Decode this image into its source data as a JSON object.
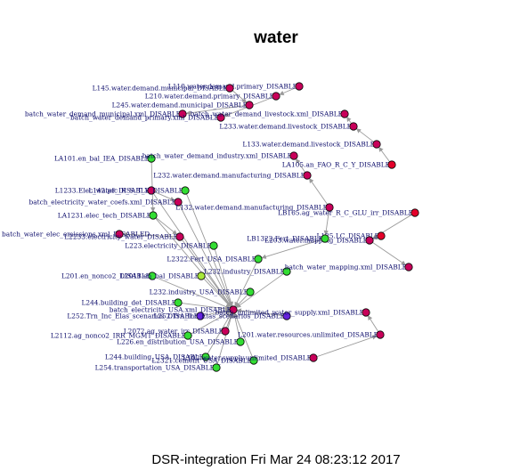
{
  "title": "water",
  "footer": "DSR-integration Fri Mar 24 08:23:12 2017",
  "colors": {
    "magenta": "#c8005a",
    "green": "#33dd33",
    "purple": "#6622dd",
    "red": "#e4002a",
    "yellow_green": "#a8e83a",
    "edge": "#9a9a9a",
    "label": "#0d0d6b"
  },
  "nodes": [
    {
      "id": "L110",
      "label": "L110.water.demand.primary_DISABLED",
      "color": "magenta"
    },
    {
      "id": "L145",
      "label": "L145.water.demand.municipal_DISABLED",
      "color": "magenta"
    },
    {
      "id": "L210",
      "label": "L210.water.demand.primary_DISABLED",
      "color": "magenta"
    },
    {
      "id": "L245",
      "label": "L245.water.demand.municipal_DISABLED",
      "color": "magenta"
    },
    {
      "id": "bwdm",
      "label": "batch_water_demand_municipal.xml_DISABLED",
      "color": "magenta"
    },
    {
      "id": "bwdp",
      "label": "batch_water_demand_primary.xml_DISABLED",
      "color": "magenta"
    },
    {
      "id": "bwdl",
      "label": "batch_water_demand_livestock.xml_DISABLED",
      "color": "magenta"
    },
    {
      "id": "L233",
      "label": "L233.water.demand.livestock_DISABLED",
      "color": "magenta"
    },
    {
      "id": "L133",
      "label": "L133.water.demand.livestock_DISABLED",
      "color": "magenta"
    },
    {
      "id": "LA105",
      "label": "LA105.an_FAO_R_C_Y_DISABLED",
      "color": "red"
    },
    {
      "id": "LA101",
      "label": "LA101.en_bal_IEA_DISABLED",
      "color": "green"
    },
    {
      "id": "bwdi",
      "label": "batch_water_demand_industry.xml_DISABLED",
      "color": "magenta"
    },
    {
      "id": "L232m",
      "label": "L232.water.demand.manufacturing_DISABLED",
      "color": "magenta"
    },
    {
      "id": "L1233",
      "label": "L1233.Elec_water_DISABLED",
      "color": "magenta"
    },
    {
      "id": "L142",
      "label": "L142.pfc_R_S_T_Y_DISABLED",
      "color": "green"
    },
    {
      "id": "L1322",
      "label": "L1322.Fert_DISABLED",
      "color": "green"
    },
    {
      "id": "bewc",
      "label": "batch_electricity_water_coefs.xml_DISABLED",
      "color": "magenta"
    },
    {
      "id": "L132",
      "label": "L132.water.demand.manufacturing_DISABLED",
      "color": "magenta"
    },
    {
      "id": "LB165",
      "label": "LB165.ag_water_R_C_GLU_irr_DISABLED",
      "color": "red"
    },
    {
      "id": "LA1231",
      "label": "LA1231.elec_tech_DISABLED",
      "color": "green"
    },
    {
      "id": "bwee",
      "label": "batch_water_elec_emissions.xml_DISABLED",
      "color": "magenta"
    },
    {
      "id": "L2233",
      "label": "L2233.electricity_water_DISABLED",
      "color": "magenta"
    },
    {
      "id": "L125",
      "label": "L125.LC_DISABLED",
      "color": "red"
    },
    {
      "id": "L203",
      "label": "L203.water.mapping_DISABLED",
      "color": "magenta"
    },
    {
      "id": "L223",
      "label": "L223.electricity_DISABLED",
      "color": "green"
    },
    {
      "id": "LB1322",
      "label": "LB1322.Fert_DISABLED",
      "color": "green"
    },
    {
      "id": "L2322",
      "label": "L2322.Fert_USA_DISABLED",
      "color": "green"
    },
    {
      "id": "L232i",
      "label": "L232.industry_DISABLED",
      "color": "green"
    },
    {
      "id": "bwm",
      "label": "batch_water_mapping.xml_DISABLED",
      "color": "magenta"
    },
    {
      "id": "L201",
      "label": "L201.en_nonco2_DISABLED",
      "color": "green"
    },
    {
      "id": "L2011",
      "label": "L2011.en_bal_DISABLED",
      "color": "yellow_green"
    },
    {
      "id": "L232iu",
      "label": "L232.industry_USA_DISABLED",
      "color": "green"
    },
    {
      "id": "L244",
      "label": "L244.building_det_DISABLED",
      "color": "green"
    },
    {
      "id": "bex",
      "label": "batch_electricity_USA.xml_DISABLED",
      "color": "magenta"
    },
    {
      "id": "L252",
      "label": "L252.Trn_Inc_Elas_scenarios_DISABLED",
      "color": "purple"
    },
    {
      "id": "L252b",
      "label": "L252.Trn_Inc_Elas_scenarios_DISABLED",
      "color": "purple"
    },
    {
      "id": "bwu",
      "label": "batch_unlimited_water_supply.xml_DISABLED",
      "color": "magenta"
    },
    {
      "id": "L2072",
      "label": "L2072.ag_water_irr_DISABLED",
      "color": "magenta"
    },
    {
      "id": "L2112",
      "label": "L2112.ag_nonco2_IRR_MGMT_DISABLED",
      "color": "green"
    },
    {
      "id": "L226",
      "label": "L226.en_distribution_USA_DISABLED",
      "color": "green"
    },
    {
      "id": "L201u",
      "label": "L201.water.resources.unlimited_DISABLED",
      "color": "magenta"
    },
    {
      "id": "L244u",
      "label": "L244.building_USA_DISABLED",
      "color": "green"
    },
    {
      "id": "L2321",
      "label": "L2321.cement_USA_DISABLED",
      "color": "green"
    },
    {
      "id": "L254",
      "label": "L254.transportation_USA_DISABLED",
      "color": "green"
    },
    {
      "id": "L102",
      "label": "L102.water.supply.unlimited_DISABLED",
      "color": "magenta"
    }
  ]
}
